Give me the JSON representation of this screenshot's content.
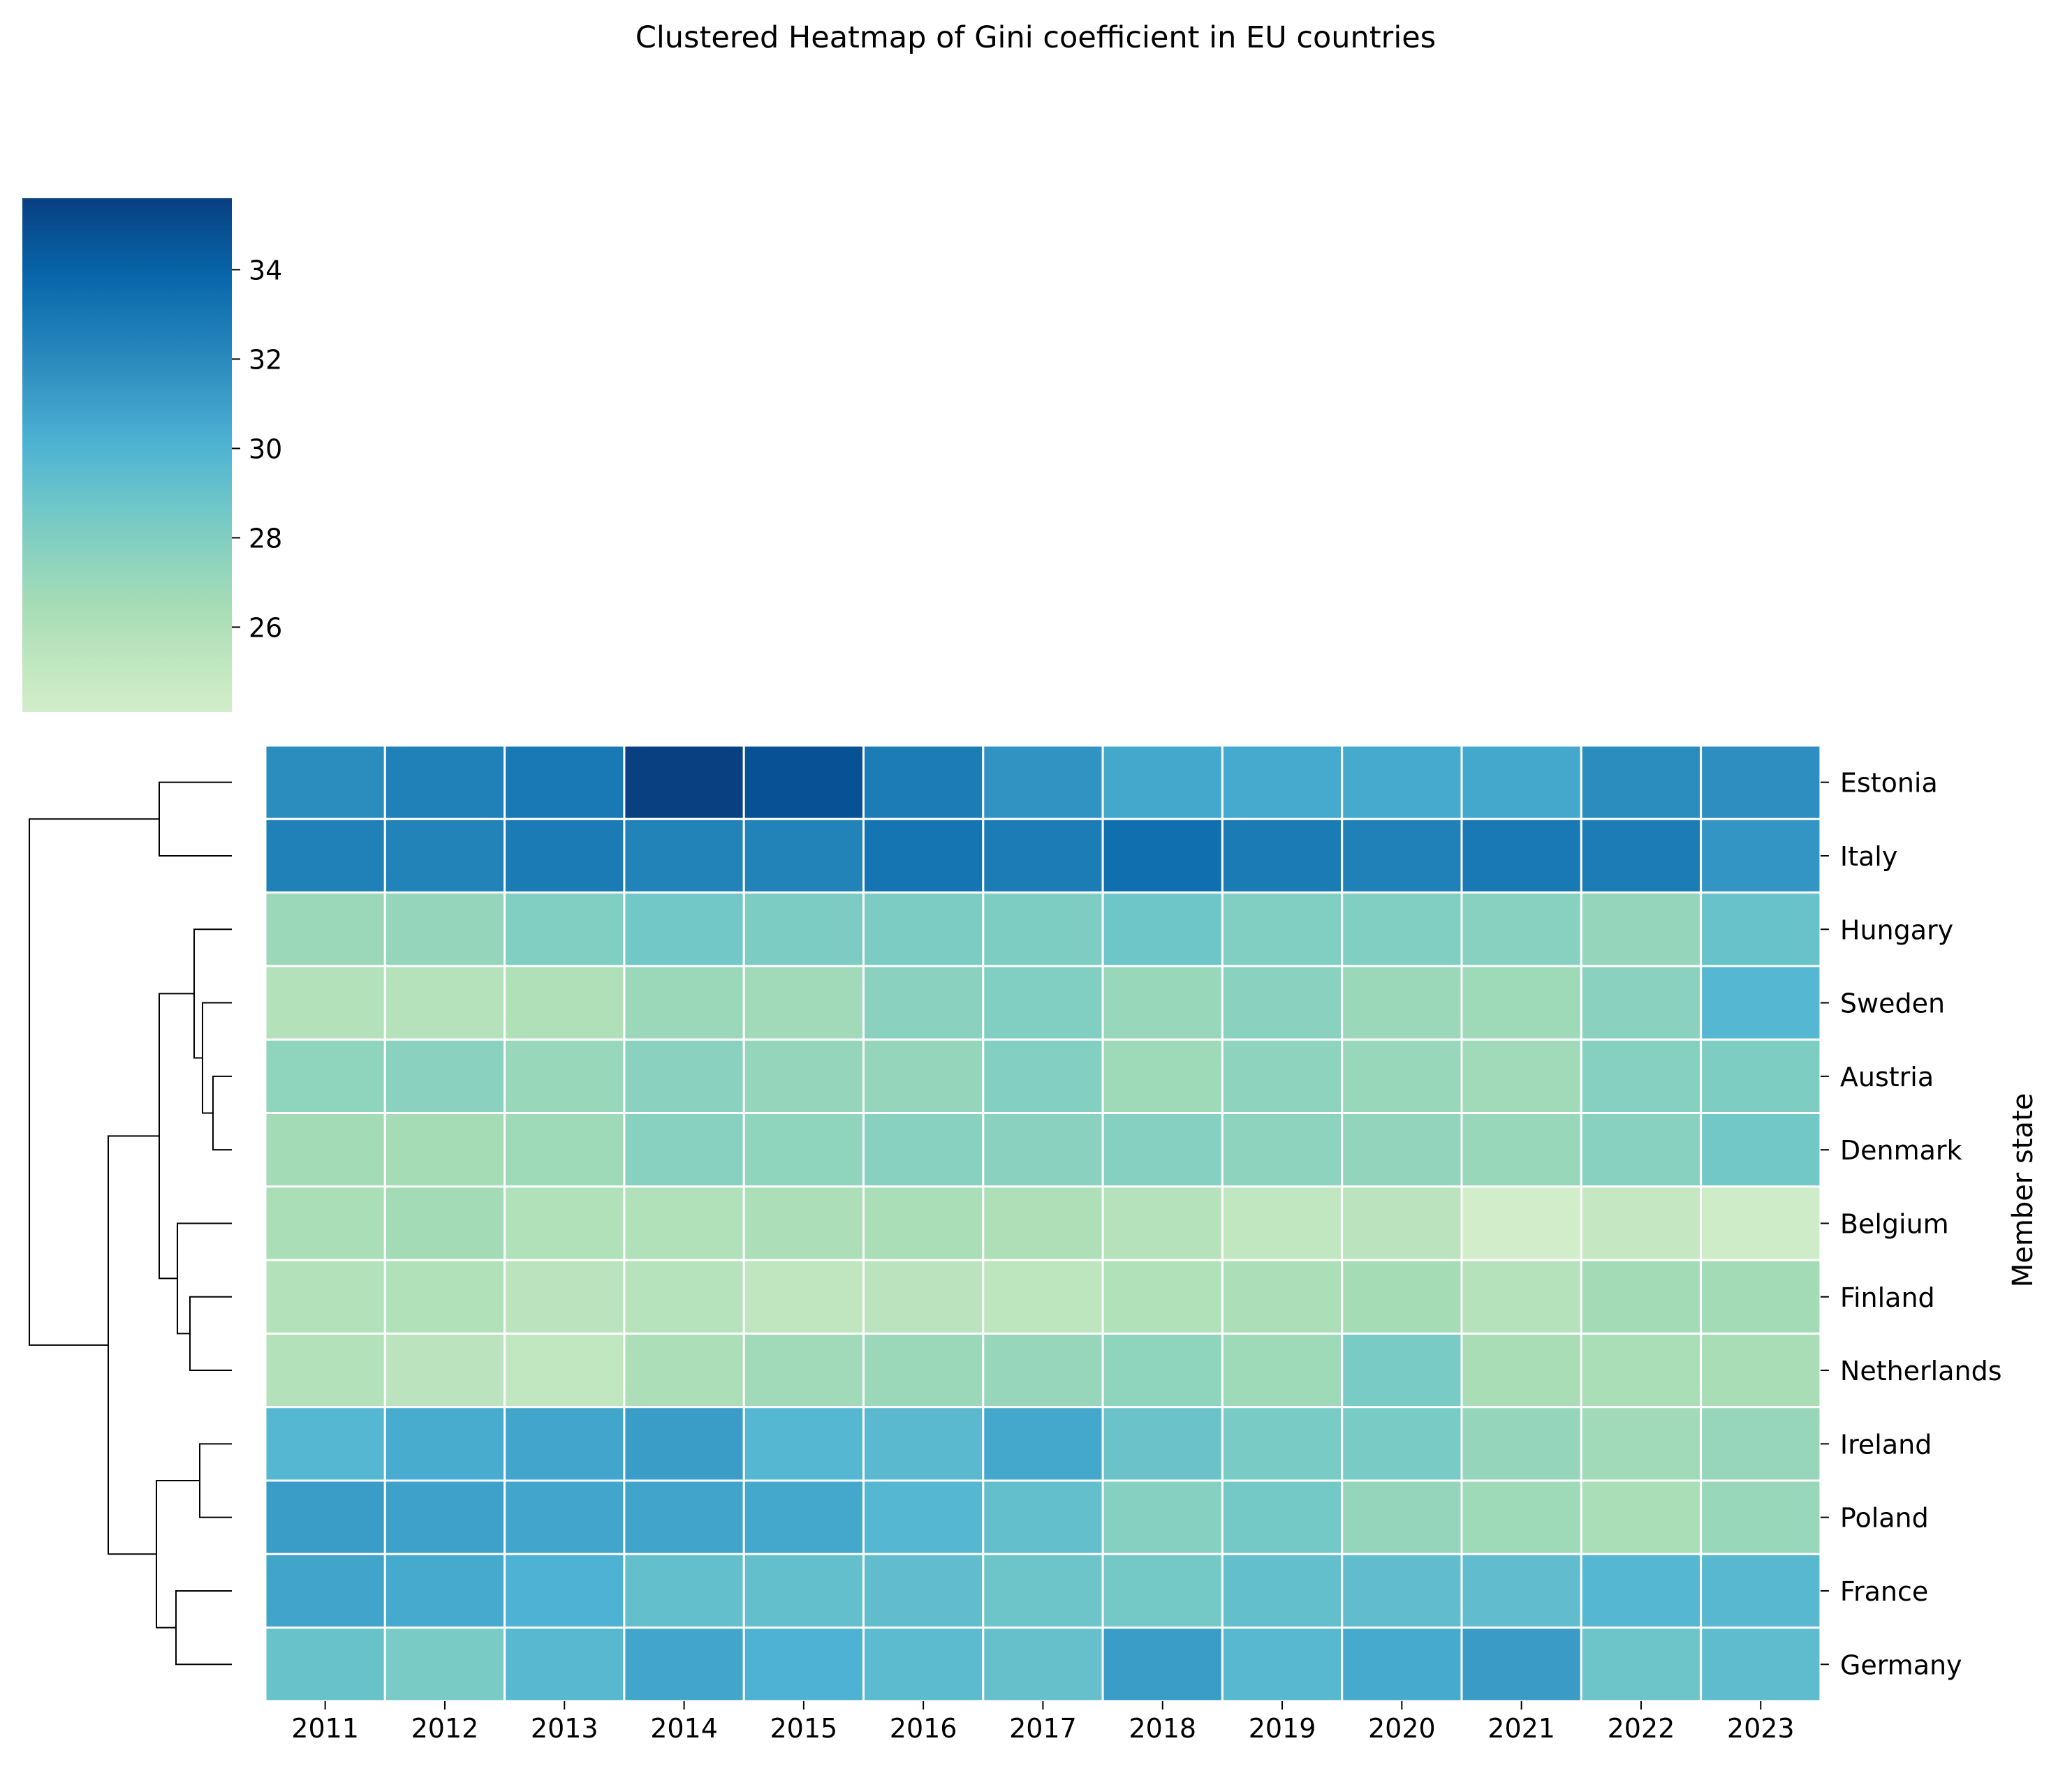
{
  "chart_data": {
    "type": "heatmap",
    "title": "Clustered Heatmap of Gini coefficient in EU countries",
    "xlabel": "",
    "ylabel": "Member state",
    "x": [
      "2011",
      "2012",
      "2013",
      "2014",
      "2015",
      "2016",
      "2017",
      "2018",
      "2019",
      "2020",
      "2021",
      "2022",
      "2023"
    ],
    "rows": [
      "Estonia",
      "Italy",
      "Hungary",
      "Sweden",
      "Austria",
      "Denmark",
      "Belgium",
      "Finland",
      "Netherlands",
      "Ireland",
      "Poland",
      "France",
      "Germany"
    ],
    "values": [
      [
        31.9,
        32.5,
        32.9,
        35.6,
        34.8,
        32.7,
        31.6,
        30.6,
        30.5,
        30.5,
        30.6,
        31.9,
        31.8
      ],
      [
        32.5,
        32.4,
        32.8,
        32.4,
        32.4,
        33.1,
        32.7,
        33.4,
        32.8,
        32.5,
        32.9,
        32.7,
        31.5
      ],
      [
        26.9,
        27.2,
        28.0,
        28.6,
        28.2,
        28.2,
        28.1,
        28.7,
        28.0,
        28.0,
        27.7,
        27.2,
        29.0
      ],
      [
        25.8,
        25.7,
        26.0,
        26.9,
        26.7,
        27.6,
        28.0,
        27.0,
        27.6,
        26.9,
        26.8,
        27.6,
        29.8
      ],
      [
        27.4,
        27.6,
        27.0,
        27.6,
        27.2,
        27.2,
        27.9,
        26.8,
        27.5,
        27.0,
        26.7,
        27.8,
        28.1
      ],
      [
        26.6,
        26.5,
        26.8,
        27.7,
        27.4,
        27.7,
        27.6,
        27.8,
        27.5,
        27.3,
        27.0,
        27.7,
        28.6
      ],
      [
        26.3,
        26.6,
        25.9,
        25.9,
        26.2,
        26.3,
        26.1,
        25.7,
        25.1,
        25.4,
        24.1,
        24.9,
        24.3
      ],
      [
        25.8,
        25.9,
        25.4,
        25.6,
        25.2,
        25.4,
        25.3,
        25.9,
        26.2,
        26.5,
        25.7,
        26.6,
        26.6
      ],
      [
        25.8,
        25.4,
        25.1,
        26.2,
        26.7,
        26.9,
        27.1,
        27.4,
        26.8,
        28.3,
        26.4,
        26.3,
        26.4
      ],
      [
        29.8,
        30.4,
        30.7,
        31.1,
        29.8,
        29.6,
        30.6,
        28.9,
        28.3,
        28.3,
        27.2,
        26.7,
        27.1
      ],
      [
        31.1,
        30.9,
        30.7,
        30.8,
        30.6,
        29.8,
        29.2,
        27.8,
        28.5,
        27.2,
        26.8,
        26.3,
        27.0
      ],
      [
        30.8,
        30.5,
        30.1,
        29.2,
        29.2,
        29.3,
        28.8,
        28.5,
        29.2,
        29.3,
        29.3,
        29.8,
        29.7
      ],
      [
        29.0,
        28.3,
        29.7,
        30.7,
        30.1,
        29.5,
        29.1,
        31.1,
        29.7,
        30.5,
        31.2,
        28.8,
        29.4
      ]
    ],
    "colorbar": {
      "min": 24.1,
      "max": 35.6,
      "ticks": [
        "26",
        "28",
        "30",
        "32",
        "34"
      ],
      "colormap": "GnBu"
    },
    "dendrogram": "row-clustering tree drawn to the left of the rows",
    "grid": false,
    "colors": {
      "cell_border": "#ffffff",
      "dendrogram_line": "#000000"
    }
  }
}
